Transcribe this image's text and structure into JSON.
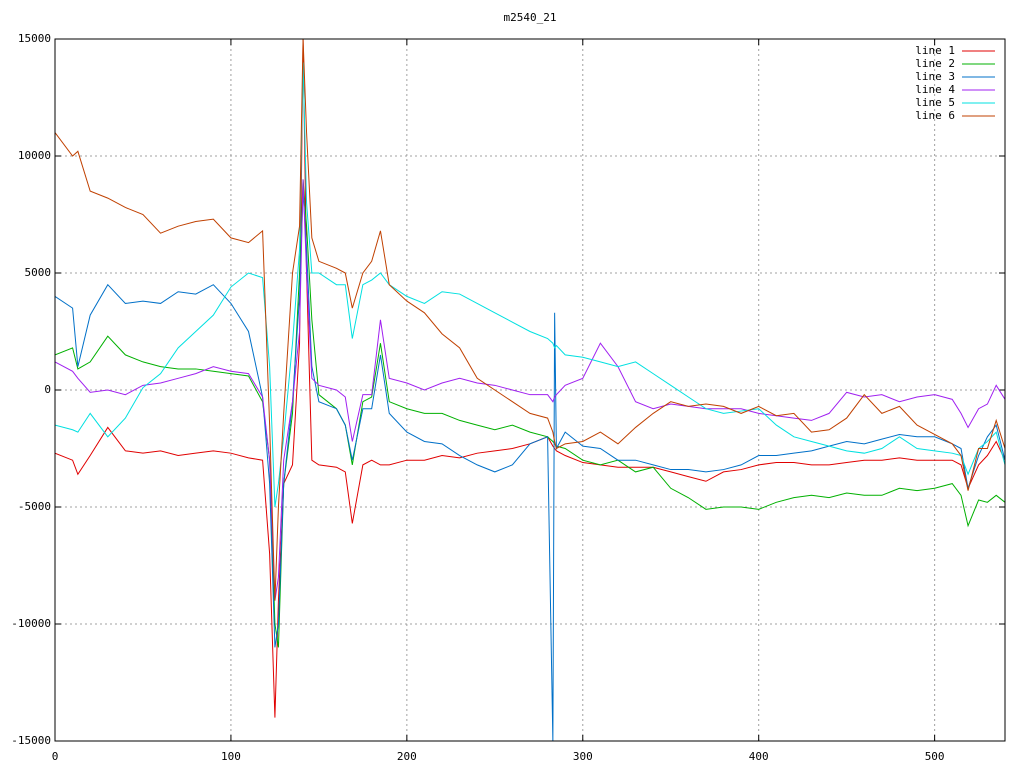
{
  "chart_data": {
    "type": "line",
    "title": "m2540_21",
    "x": [
      0,
      10,
      13,
      20,
      30,
      40,
      50,
      60,
      70,
      80,
      90,
      100,
      110,
      118,
      122,
      125,
      127,
      130,
      135,
      139,
      141,
      143,
      146,
      150,
      160,
      165,
      169,
      175,
      180,
      185,
      190,
      200,
      210,
      220,
      230,
      240,
      250,
      260,
      270,
      280,
      283,
      284,
      285,
      290,
      300,
      310,
      320,
      330,
      340,
      350,
      360,
      370,
      380,
      390,
      400,
      410,
      420,
      430,
      440,
      450,
      460,
      470,
      480,
      490,
      500,
      510,
      515,
      519,
      525,
      530,
      535,
      540
    ],
    "series": [
      {
        "name": "line 1",
        "color": "#e00000",
        "values": [
          -2700,
          -3000,
          -3600,
          -2800,
          -1600,
          -2600,
          -2700,
          -2600,
          -2800,
          -2700,
          -2600,
          -2700,
          -2900,
          -3000,
          -7000,
          -14000,
          -9000,
          -4000,
          -3200,
          2000,
          15000,
          5000,
          -3000,
          -3200,
          -3300,
          -3500,
          -5700,
          -3200,
          -3000,
          -3200,
          -3200,
          -3000,
          -3000,
          -2800,
          -2900,
          -2700,
          -2600,
          -2500,
          -2300,
          -2000,
          -2400,
          -2500,
          -2600,
          -2800,
          -3100,
          -3200,
          -3300,
          -3300,
          -3300,
          -3500,
          -3700,
          -3900,
          -3500,
          -3400,
          -3200,
          -3100,
          -3100,
          -3200,
          -3200,
          -3100,
          -3000,
          -3000,
          -2900,
          -3000,
          -3000,
          -3000,
          -3200,
          -4200,
          -3200,
          -2800,
          -2200,
          -3000
        ]
      },
      {
        "name": "line 2",
        "color": "#00b000",
        "values": [
          1500,
          1800,
          900,
          1200,
          2300,
          1500,
          1200,
          1000,
          900,
          900,
          800,
          700,
          600,
          -500,
          -3000,
          -10000,
          -11000,
          -4000,
          -1000,
          5000,
          9000,
          7000,
          3000,
          -200,
          -800,
          -1500,
          -3200,
          -500,
          -300,
          2000,
          -500,
          -800,
          -1000,
          -1000,
          -1300,
          -1500,
          -1700,
          -1500,
          -1800,
          -2000,
          -2200,
          -2300,
          -2400,
          -2500,
          -3000,
          -3200,
          -3000,
          -3500,
          -3300,
          -4200,
          -4600,
          -5100,
          -5000,
          -5000,
          -5100,
          -4800,
          -4600,
          -4500,
          -4600,
          -4400,
          -4500,
          -4500,
          -4200,
          -4300,
          -4200,
          -4000,
          -4500,
          -5800,
          -4700,
          -4800,
          -4500,
          -4800
        ]
      },
      {
        "name": "line 3",
        "color": "#0070c8",
        "values": [
          4000,
          3500,
          1000,
          3200,
          4500,
          3700,
          3800,
          3700,
          4200,
          4100,
          4500,
          3700,
          2500,
          -300,
          -4000,
          -11000,
          -10000,
          -4000,
          -500,
          4000,
          8500,
          6000,
          1000,
          -500,
          -800,
          -1500,
          -3000,
          -800,
          -800,
          1500,
          -1000,
          -1800,
          -2200,
          -2300,
          -2800,
          -3200,
          -3500,
          -3200,
          -2300,
          -2000,
          -15000,
          3300,
          -2500,
          -1800,
          -2400,
          -2500,
          -3000,
          -3000,
          -3200,
          -3400,
          -3400,
          -3500,
          -3400,
          -3200,
          -2800,
          -2800,
          -2700,
          -2600,
          -2400,
          -2200,
          -2300,
          -2100,
          -1900,
          -2000,
          -2000,
          -2300,
          -2500,
          -4200,
          -2800,
          -2000,
          -1500,
          -3000
        ]
      },
      {
        "name": "line 4",
        "color": "#a020f0",
        "values": [
          1200,
          800,
          500,
          -100,
          0,
          -200,
          200,
          300,
          500,
          700,
          1000,
          800,
          700,
          -300,
          -3000,
          -9000,
          -8000,
          -3000,
          -500,
          2500,
          9000,
          5000,
          500,
          200,
          0,
          -300,
          -2200,
          -200,
          -200,
          3000,
          500,
          300,
          0,
          300,
          500,
          300,
          200,
          0,
          -200,
          -200,
          -500,
          -300,
          -200,
          200,
          500,
          2000,
          1000,
          -500,
          -800,
          -600,
          -700,
          -800,
          -800,
          -800,
          -1000,
          -1100,
          -1200,
          -1300,
          -1000,
          -100,
          -300,
          -200,
          -500,
          -300,
          -200,
          -400,
          -1000,
          -1600,
          -800,
          -600,
          200,
          -400
        ]
      },
      {
        "name": "line 5",
        "color": "#00e0e0",
        "values": [
          -1500,
          -1700,
          -1800,
          -1000,
          -2000,
          -1200,
          100,
          700,
          1800,
          2500,
          3200,
          4400,
          5000,
          4800,
          1000,
          -5000,
          -4000,
          -2000,
          2000,
          6000,
          14000,
          8000,
          5000,
          5000,
          4500,
          4500,
          2200,
          4500,
          4700,
          5000,
          4500,
          4000,
          3700,
          4200,
          4100,
          3700,
          3300,
          2900,
          2500,
          2200,
          2000,
          1800,
          1900,
          1500,
          1400,
          1200,
          1000,
          1200,
          700,
          200,
          -300,
          -800,
          -1000,
          -900,
          -800,
          -1500,
          -2000,
          -2200,
          -2400,
          -2600,
          -2700,
          -2500,
          -2000,
          -2500,
          -2600,
          -2700,
          -2800,
          -3600,
          -2500,
          -2200,
          -1800,
          -3200
        ]
      },
      {
        "name": "line 6",
        "color": "#c04000",
        "values": [
          11000,
          10000,
          10200,
          8500,
          8200,
          7800,
          7500,
          6700,
          7000,
          7200,
          7300,
          6500,
          6300,
          6800,
          -1500,
          -9000,
          -5000,
          -1000,
          5000,
          7000,
          15000,
          11000,
          6500,
          5500,
          5200,
          5000,
          3500,
          5000,
          5500,
          6800,
          4500,
          3800,
          3300,
          2400,
          1800,
          500,
          0,
          -500,
          -1000,
          -1200,
          -1800,
          -2200,
          -2500,
          -2300,
          -2200,
          -1800,
          -2300,
          -1600,
          -1000,
          -500,
          -700,
          -600,
          -700,
          -1000,
          -700,
          -1100,
          -1000,
          -1800,
          -1700,
          -1200,
          -200,
          -1000,
          -700,
          -1500,
          -1900,
          -2300,
          -2800,
          -4300,
          -2500,
          -2500,
          -1300,
          -2500
        ]
      }
    ],
    "xlim": [
      0,
      540
    ],
    "xticks": [
      0,
      100,
      200,
      300,
      400,
      500
    ],
    "ylim": [
      -15000,
      15000
    ],
    "yticks": [
      -15000,
      -10000,
      -5000,
      0,
      5000,
      10000,
      15000
    ],
    "grid": true,
    "legend": "top-right"
  }
}
